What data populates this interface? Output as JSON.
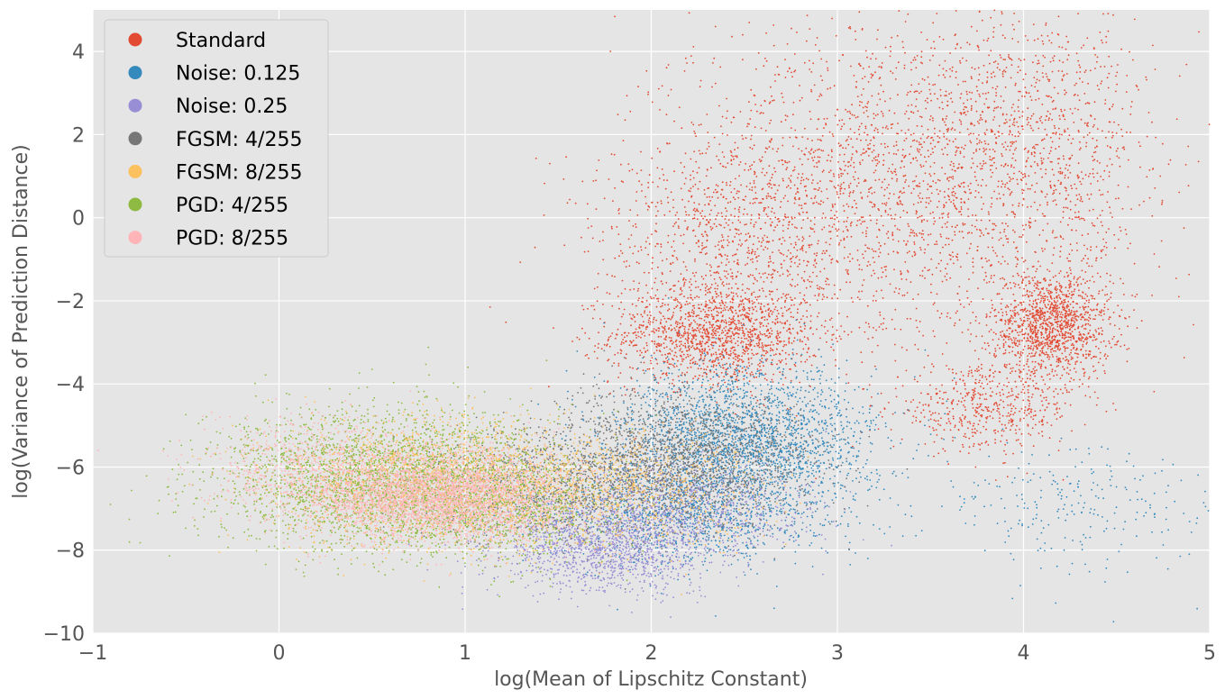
{
  "chart_data": {
    "type": "scatter",
    "title": "",
    "xlabel": "log(Mean of Lipschitz Constant)",
    "ylabel": "log(Variance of Prediction Distance)",
    "xlim": [
      -1,
      5
    ],
    "ylim": [
      -10,
      5
    ],
    "x_ticks": [
      -1,
      0,
      1,
      2,
      3,
      4,
      5
    ],
    "y_ticks": [
      -10,
      -8,
      -6,
      -4,
      -2,
      0,
      2,
      4
    ],
    "x_tick_labels": [
      "−1",
      "0",
      "1",
      "2",
      "3",
      "4",
      "5"
    ],
    "y_tick_labels": [
      "−10",
      "−8",
      "−6",
      "−4",
      "−2",
      "0",
      "2",
      "4"
    ],
    "grid": true,
    "background": "#e5e5e5",
    "legend_position": "top-left",
    "series": [
      {
        "name": "Standard",
        "color": "#e24a33",
        "clusters": [
          {
            "cx": 2.35,
            "cy": -2.8,
            "sx": 0.28,
            "sy": 0.6,
            "n": 1400
          },
          {
            "cx": 4.15,
            "cy": -2.6,
            "sx": 0.16,
            "sy": 0.65,
            "n": 1300
          },
          {
            "cx": 3.8,
            "cy": -4.6,
            "sx": 0.25,
            "sy": 0.5,
            "n": 500
          },
          {
            "cx": 3.3,
            "cy": 0.8,
            "sx": 0.6,
            "sy": 2.0,
            "n": 2200
          },
          {
            "cx": 2.4,
            "cy": -0.5,
            "sx": 0.35,
            "sy": 1.2,
            "n": 700
          },
          {
            "cx": 4.1,
            "cy": 2.0,
            "sx": 0.3,
            "sy": 1.6,
            "n": 700
          }
        ]
      },
      {
        "name": "Noise: 0.125",
        "color": "#348abd",
        "clusters": [
          {
            "cx": 2.5,
            "cy": -5.4,
            "sx": 0.35,
            "sy": 0.9,
            "n": 2400
          },
          {
            "cx": 2.2,
            "cy": -7.2,
            "sx": 0.35,
            "sy": 0.6,
            "n": 900
          },
          {
            "cx": 4.3,
            "cy": -7.0,
            "sx": 0.4,
            "sy": 0.8,
            "n": 250
          }
        ]
      },
      {
        "name": "Noise: 0.25",
        "color": "#988ed5",
        "clusters": [
          {
            "cx": 1.75,
            "cy": -7.9,
            "sx": 0.3,
            "sy": 0.55,
            "n": 1400
          },
          {
            "cx": 2.2,
            "cy": -7.0,
            "sx": 0.35,
            "sy": 0.6,
            "n": 700
          }
        ]
      },
      {
        "name": "FGSM: 4/255",
        "color": "#777777",
        "clusters": [
          {
            "cx": 2.2,
            "cy": -5.8,
            "sx": 0.35,
            "sy": 0.8,
            "n": 1800
          },
          {
            "cx": 1.5,
            "cy": -6.4,
            "sx": 0.35,
            "sy": 0.7,
            "n": 900
          }
        ]
      },
      {
        "name": "FGSM: 8/255",
        "color": "#fbc15e",
        "clusters": [
          {
            "cx": 0.9,
            "cy": -6.4,
            "sx": 0.45,
            "sy": 0.75,
            "n": 2200
          },
          {
            "cx": 1.9,
            "cy": -6.6,
            "sx": 0.35,
            "sy": 0.7,
            "n": 700
          }
        ]
      },
      {
        "name": "PGD: 4/255",
        "color": "#8eba42",
        "clusters": [
          {
            "cx": 0.55,
            "cy": -6.3,
            "sx": 0.45,
            "sy": 0.85,
            "n": 2600
          },
          {
            "cx": 1.2,
            "cy": -7.0,
            "sx": 0.3,
            "sy": 0.6,
            "n": 700
          }
        ]
      },
      {
        "name": "PGD: 8/255",
        "color": "#ffb5b8",
        "clusters": [
          {
            "cx": 0.85,
            "cy": -6.7,
            "sx": 0.35,
            "sy": 0.55,
            "n": 3200
          },
          {
            "cx": 0.2,
            "cy": -6.0,
            "sx": 0.3,
            "sy": 0.6,
            "n": 600
          }
        ]
      }
    ]
  }
}
